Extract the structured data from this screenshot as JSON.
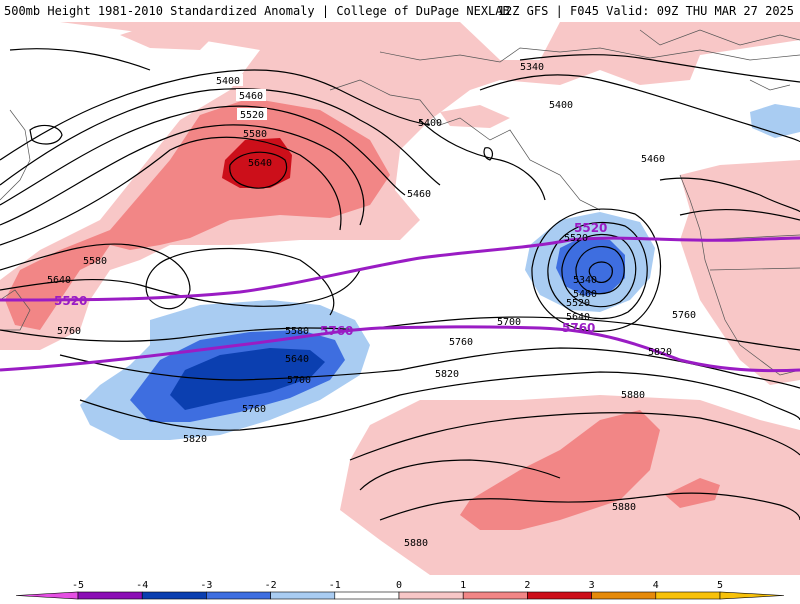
{
  "header": {
    "title_left": "500mb Height 1981-2010 Standardized Anomaly | College of DuPage NEXLAB",
    "title_right": "12Z GFS | F045 Valid: 09Z THU MAR 27 2025"
  },
  "map": {
    "contour_labels": [
      "5400",
      "5460",
      "5520",
      "5580",
      "5640",
      "5580",
      "5640",
      "5760",
      "5400",
      "5340",
      "5400",
      "5460",
      "5460",
      "5520",
      "5340",
      "5460",
      "5520",
      "5640",
      "5700",
      "5760",
      "5760",
      "5580",
      "5640",
      "5700",
      "5760",
      "5820",
      "5820",
      "5820",
      "5880",
      "5880",
      "5880"
    ],
    "highlight_labels": [
      "5520",
      "5760",
      "5520",
      "5760"
    ]
  },
  "colorbar": {
    "ticks": [
      "-5",
      "-4",
      "-3",
      "-2",
      "-1",
      "0",
      "1",
      "2",
      "3",
      "4",
      "5"
    ],
    "colors": [
      "#e54fe3",
      "#8b0fb5",
      "#0b3fb0",
      "#3e6ee0",
      "#a9ccf2",
      "#ffffff",
      "#f8c7c7",
      "#f28686",
      "#cc0f1a",
      "#e58a0a",
      "#f7c10a"
    ]
  }
}
